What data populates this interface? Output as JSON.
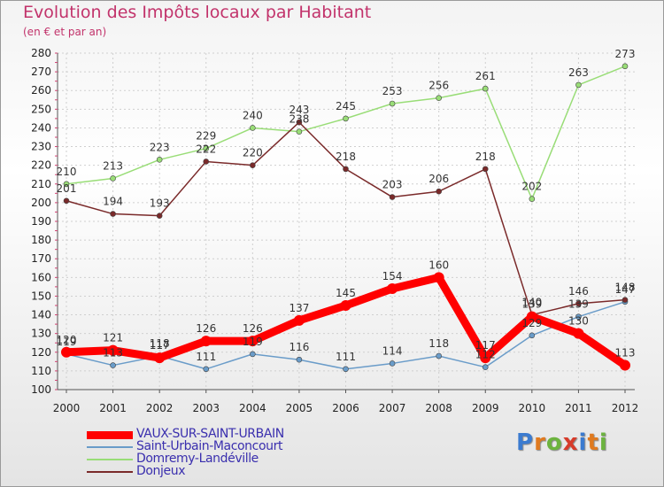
{
  "title": "Evolution des Impôts locaux par Habitant",
  "subtitle": "(en € et par an)",
  "logo": {
    "text": "Proxiti",
    "letters": [
      "P",
      "r",
      "o",
      "x",
      "i",
      "t",
      "i"
    ],
    "colors": [
      "#3b7bd0",
      "#e07a1f",
      "#6cb33f",
      "#d73b2a",
      "#3b7bd0",
      "#e07a1f",
      "#6cb33f"
    ]
  },
  "chart_data": {
    "type": "line",
    "title": "Evolution des Impôts locaux par Habitant",
    "subtitle": "(en € et par an)",
    "x": [
      "2000",
      "2001",
      "2002",
      "2003",
      "2004",
      "2005",
      "2006",
      "2007",
      "2008",
      "2009",
      "2010",
      "2011",
      "2012"
    ],
    "ylim": [
      100,
      280
    ],
    "ytick_step": 10,
    "grid": true,
    "legend_position": "bottom-left",
    "series": [
      {
        "name": "VAUX-SUR-SAINT-URBAIN",
        "color": "#ff0000",
        "values": [
          120,
          121,
          117,
          126,
          126,
          137,
          145,
          154,
          160,
          117,
          139,
          130,
          113
        ]
      },
      {
        "name": "Saint-Urbain-Maconcourt",
        "color": "#6a9cc9",
        "values": [
          119,
          113,
          118,
          111,
          119,
          116,
          111,
          114,
          118,
          112,
          129,
          139,
          147
        ]
      },
      {
        "name": "Domremy-Landéville",
        "color": "#99dd77",
        "values": [
          210,
          213,
          223,
          229,
          240,
          238,
          245,
          253,
          256,
          261,
          202,
          263,
          273
        ]
      },
      {
        "name": "Donjeux",
        "color": "#7a2a2a",
        "values": [
          201,
          194,
          193,
          222,
          220,
          243,
          218,
          203,
          206,
          218,
          140,
          146,
          148
        ]
      }
    ]
  }
}
